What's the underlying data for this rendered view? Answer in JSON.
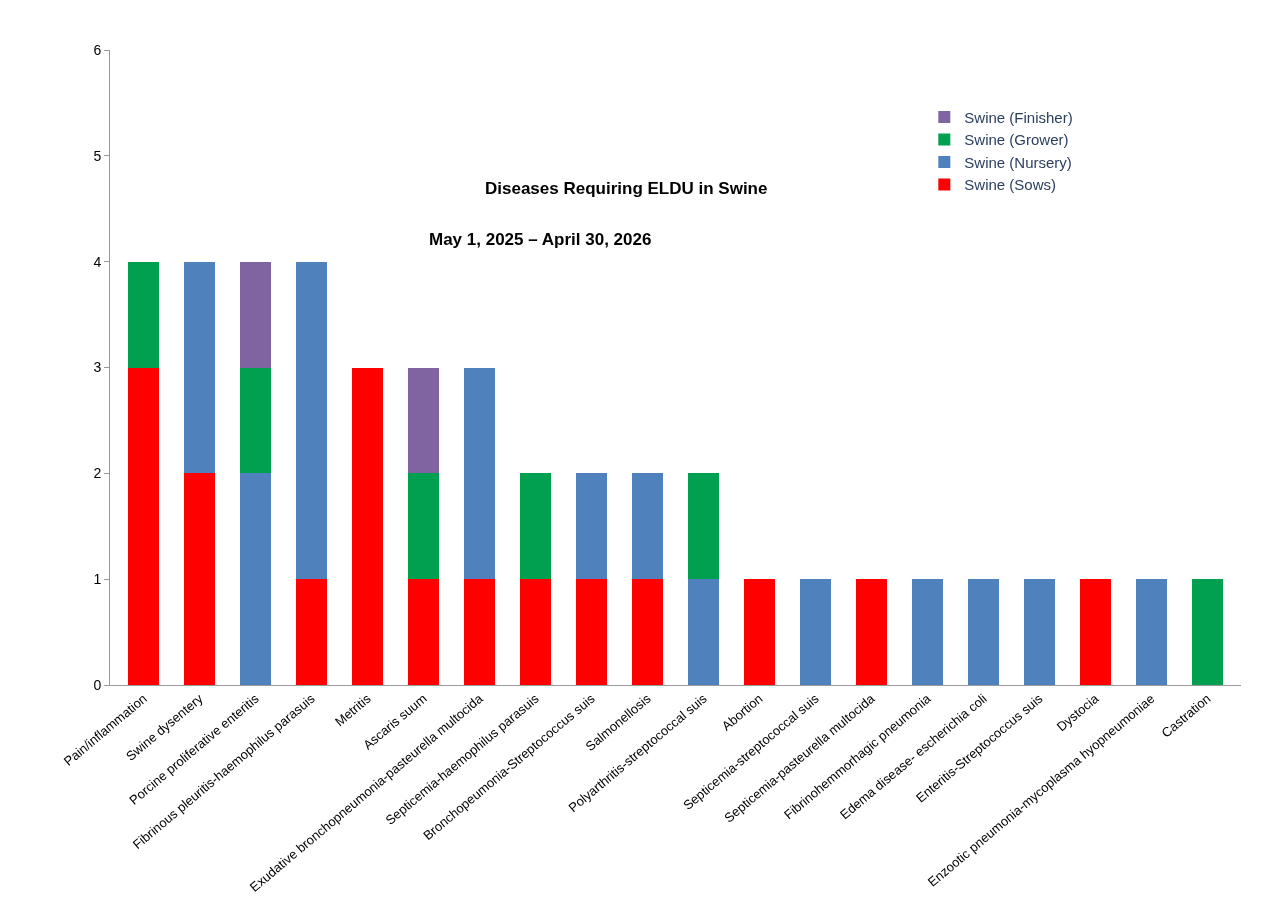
{
  "chart_data": {
    "type": "bar",
    "stacked": true,
    "title": "Diseases Requiring ELDU in Swine",
    "subtitle": "May 1, 2025 – April 30, 2026",
    "categories": [
      "Pain/inflammation",
      "Swine dysentery",
      "Porcine proliferative enteritis",
      "Fibrinous pleuritis-haemophilus parasuis",
      "Metritis",
      "Ascaris suum",
      "Exudative bronchopneumonia-pasteurella multocida",
      "Septicemia-haemophilus parasuis",
      "Bronchopeumonia-Streptococcus suis",
      "Salmonellosis",
      "Polyarthritis-streptococcal suis",
      "Abortion",
      "Septicemia-streptococcal suis",
      "Septicemia-pasteurella multocida",
      "Fibrinohemmorhagic pneumonia",
      "Edema disease- escherichia coli",
      "Enteritis-Streptococcus suis",
      "Dystocia",
      "Enzootic pneumonia-mycoplasma hyopneumoniae",
      "Castration"
    ],
    "series": [
      {
        "name": "Swine (Sows)",
        "color": "#ff0000",
        "values": [
          3,
          2,
          null,
          1,
          3,
          1,
          1,
          1,
          1,
          1,
          null,
          1,
          null,
          1,
          null,
          null,
          null,
          1,
          null,
          null
        ]
      },
      {
        "name": "Swine (Nursery)",
        "color": "#4f81bd",
        "values": [
          null,
          2,
          2,
          3,
          null,
          null,
          2,
          null,
          1,
          1,
          1,
          null,
          1,
          null,
          1,
          1,
          1,
          null,
          1,
          null
        ]
      },
      {
        "name": "Swine (Grower)",
        "color": "#00a050",
        "values": [
          1,
          null,
          1,
          null,
          null,
          1,
          null,
          1,
          null,
          null,
          1,
          null,
          null,
          null,
          null,
          null,
          null,
          null,
          null,
          1
        ]
      },
      {
        "name": "Swine (Finisher)",
        "color": "#8064a2",
        "values": [
          null,
          null,
          1,
          null,
          null,
          1,
          null,
          null,
          null,
          null,
          null,
          null,
          null,
          null,
          null,
          null,
          null,
          null,
          null,
          null
        ]
      }
    ],
    "ylim": [
      0,
      6
    ],
    "yticks": [
      0,
      1,
      2,
      3,
      4,
      5,
      6
    ],
    "grid": false,
    "legend": "top right"
  }
}
